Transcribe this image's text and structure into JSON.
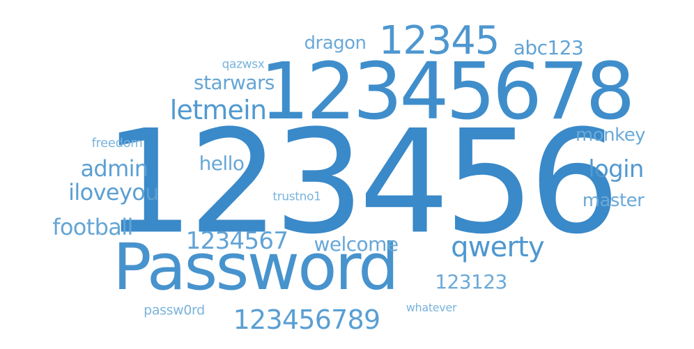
{
  "word_cloud": {
    "words": [
      {
        "text": "123456"
      },
      {
        "text": "12345678"
      },
      {
        "text": "Password"
      },
      {
        "text": "12345"
      },
      {
        "text": "qwerty"
      },
      {
        "text": "letmein"
      },
      {
        "text": "login"
      },
      {
        "text": "123456789"
      },
      {
        "text": "admin"
      },
      {
        "text": "iloveyou"
      },
      {
        "text": "abc123"
      },
      {
        "text": "1234567"
      },
      {
        "text": "starwars"
      },
      {
        "text": "football"
      },
      {
        "text": "welcome"
      },
      {
        "text": "hello"
      },
      {
        "text": "dragon"
      },
      {
        "text": "monkey"
      },
      {
        "text": "master"
      },
      {
        "text": "123123"
      },
      {
        "text": "qazwsx"
      },
      {
        "text": "freedom"
      },
      {
        "text": "trustno1"
      },
      {
        "text": "passw0rd"
      },
      {
        "text": "whatever"
      }
    ]
  }
}
